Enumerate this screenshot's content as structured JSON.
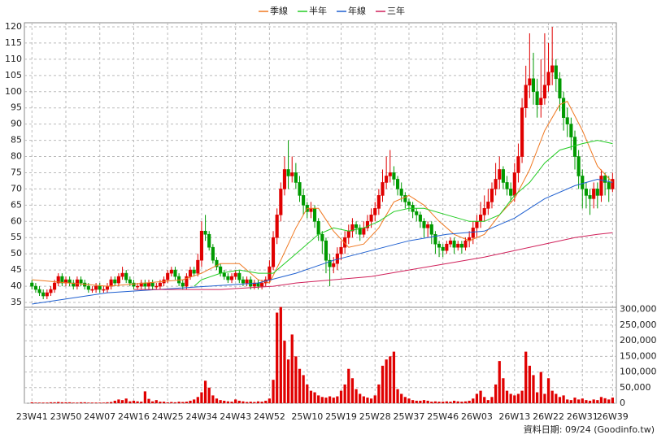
{
  "chart_data": {
    "type": "candlestick",
    "legend_position": "top",
    "grid": true,
    "up_color": "#e00000",
    "down_color": "#009a00",
    "source": "資料日期: 09/24  (Goodinfo.tw)",
    "xlim": [
      -2,
      155
    ],
    "xticks": [
      {
        "value": 0,
        "label": "23W41"
      },
      {
        "value": 9,
        "label": "23W50"
      },
      {
        "value": 18,
        "label": "24W07"
      },
      {
        "value": 27,
        "label": "24W16"
      },
      {
        "value": 36,
        "label": "24W25"
      },
      {
        "value": 45,
        "label": "24W34"
      },
      {
        "value": 54,
        "label": "24W43"
      },
      {
        "value": 63,
        "label": "24W52"
      },
      {
        "value": 73,
        "label": "25W10"
      },
      {
        "value": 82,
        "label": "25W19"
      },
      {
        "value": 91,
        "label": "25W28"
      },
      {
        "value": 100,
        "label": "25W37"
      },
      {
        "value": 109,
        "label": "25W46"
      },
      {
        "value": 118,
        "label": "26W03"
      },
      {
        "value": 128,
        "label": "26W13"
      },
      {
        "value": 137,
        "label": "26W22"
      },
      {
        "value": 146,
        "label": "26W31"
      },
      {
        "value": 154,
        "label": "26W39"
      }
    ],
    "ylim": [
      33.5,
      121.25
    ],
    "yticks": [
      35,
      40,
      45,
      50,
      55,
      60,
      65,
      70,
      75,
      80,
      85,
      90,
      95,
      100,
      105,
      110,
      115,
      120
    ],
    "y2lim": [
      0,
      307000
    ],
    "y2ticks": [
      0,
      {
        "value": 50000,
        "label": "50,000"
      },
      {
        "value": 100000,
        "label": "100,000"
      },
      {
        "value": 150000,
        "label": "150,000"
      },
      {
        "value": 200000,
        "label": "200,000"
      },
      {
        "value": 250000,
        "label": "250,000"
      },
      {
        "value": 300000,
        "label": "300,000"
      }
    ],
    "open": [
      41,
      40,
      39,
      38,
      37,
      38,
      39,
      41,
      43,
      41,
      42,
      41,
      40,
      42,
      41,
      40,
      39,
      39,
      40,
      39,
      39,
      40,
      42,
      41,
      43,
      44,
      42,
      41,
      40,
      40,
      41,
      40,
      41,
      40,
      40,
      41,
      42,
      44,
      45,
      43,
      41,
      40,
      43,
      45,
      44,
      48,
      57,
      56,
      52,
      48,
      46,
      44,
      43,
      42,
      43,
      44,
      42,
      41,
      42,
      40,
      41,
      40,
      41,
      42,
      46,
      55,
      62,
      70,
      76,
      74,
      75,
      72,
      68,
      65,
      63,
      64,
      60,
      56,
      54,
      48,
      46,
      47,
      50,
      52,
      55,
      57,
      59,
      58,
      56,
      58,
      60,
      62,
      64,
      68,
      72,
      74,
      75,
      73,
      70,
      68,
      66,
      65,
      63,
      62,
      60,
      58,
      59,
      56,
      53,
      52,
      51,
      53,
      54,
      52,
      53,
      52,
      54,
      55,
      58,
      60,
      62,
      64,
      66,
      70,
      73,
      76,
      72,
      70,
      68,
      75,
      80,
      95,
      102,
      104,
      100,
      96,
      98,
      102,
      106,
      108,
      104,
      98,
      92,
      90,
      86,
      80,
      74,
      70,
      68,
      67,
      70,
      68,
      74,
      72,
      70
    ],
    "high": [
      42,
      41,
      40,
      39,
      39,
      40,
      42,
      44,
      44,
      43,
      43,
      42,
      43,
      43,
      42,
      41,
      40,
      41,
      41,
      40,
      41,
      43,
      43,
      44,
      46,
      45,
      43,
      42,
      41,
      42,
      42,
      42,
      42,
      41,
      42,
      43,
      45,
      46,
      46,
      44,
      42,
      44,
      46,
      46,
      50,
      60,
      62,
      57,
      53,
      49,
      47,
      45,
      44,
      44,
      45,
      45,
      43,
      43,
      43,
      42,
      42,
      42,
      43,
      48,
      57,
      64,
      72,
      80,
      85,
      80,
      78,
      74,
      70,
      66,
      66,
      65,
      61,
      57,
      55,
      50,
      49,
      52,
      54,
      57,
      59,
      61,
      60,
      59,
      60,
      62,
      64,
      66,
      70,
      76,
      80,
      82,
      77,
      74,
      72,
      69,
      67,
      66,
      64,
      63,
      61,
      60,
      60,
      57,
      54,
      53,
      54,
      55,
      55,
      54,
      54,
      55,
      57,
      60,
      62,
      66,
      68,
      70,
      72,
      78,
      80,
      77,
      74,
      72,
      78,
      84,
      98,
      108,
      118,
      112,
      104,
      110,
      118,
      115,
      120,
      110,
      106,
      100,
      95,
      92,
      88,
      82,
      76,
      72,
      70,
      72,
      72,
      76,
      75,
      74,
      75
    ],
    "low": [
      39,
      38,
      37,
      36,
      36,
      37,
      38,
      40,
      40,
      40,
      40,
      39,
      39,
      40,
      39,
      38,
      38,
      38,
      38,
      38,
      38,
      39,
      40,
      40,
      42,
      41,
      40,
      39,
      39,
      39,
      39,
      39,
      39,
      39,
      39,
      40,
      41,
      43,
      42,
      40,
      39,
      39,
      42,
      43,
      43,
      46,
      54,
      51,
      47,
      45,
      43,
      42,
      41,
      41,
      42,
      41,
      40,
      40,
      39,
      39,
      39,
      39,
      40,
      41,
      45,
      53,
      60,
      68,
      70,
      72,
      70,
      66,
      62,
      61,
      61,
      58,
      54,
      50,
      44,
      40,
      44,
      45,
      48,
      50,
      53,
      55,
      56,
      54,
      55,
      57,
      58,
      60,
      62,
      66,
      70,
      72,
      71,
      68,
      66,
      64,
      63,
      61,
      60,
      58,
      55,
      55,
      53,
      50,
      49,
      49,
      50,
      52,
      50,
      51,
      50,
      51,
      52,
      53,
      55,
      58,
      60,
      62,
      64,
      68,
      70,
      70,
      68,
      66,
      66,
      72,
      78,
      92,
      98,
      96,
      92,
      92,
      96,
      100,
      102,
      100,
      94,
      88,
      86,
      82,
      76,
      70,
      64,
      64,
      62,
      64,
      64,
      66,
      68,
      66,
      69
    ],
    "close": [
      40,
      39,
      38,
      37,
      38,
      39,
      41,
      43,
      41,
      42,
      41,
      40,
      42,
      41,
      40,
      39,
      39,
      40,
      39,
      39,
      40,
      42,
      41,
      43,
      44,
      42,
      41,
      40,
      40,
      41,
      40,
      41,
      40,
      40,
      41,
      42,
      44,
      45,
      43,
      41,
      40,
      43,
      45,
      44,
      48,
      57,
      56,
      52,
      48,
      46,
      44,
      43,
      42,
      43,
      44,
      42,
      41,
      42,
      40,
      41,
      40,
      41,
      42,
      46,
      55,
      62,
      70,
      76,
      74,
      75,
      72,
      68,
      65,
      63,
      64,
      60,
      56,
      54,
      48,
      46,
      47,
      50,
      52,
      55,
      57,
      59,
      58,
      56,
      58,
      60,
      62,
      64,
      68,
      72,
      74,
      75,
      73,
      70,
      68,
      66,
      65,
      63,
      62,
      60,
      58,
      59,
      56,
      53,
      52,
      51,
      53,
      54,
      52,
      53,
      52,
      54,
      55,
      58,
      60,
      62,
      64,
      66,
      70,
      73,
      76,
      72,
      70,
      68,
      75,
      80,
      95,
      102,
      104,
      100,
      96,
      98,
      102,
      106,
      108,
      104,
      98,
      92,
      90,
      86,
      80,
      74,
      70,
      68,
      67,
      70,
      68,
      74,
      72,
      70,
      73
    ],
    "volume": {
      "color": "#e00000",
      "values": [
        3000,
        2000,
        2000,
        2000,
        2000,
        3000,
        3000,
        4000,
        3000,
        3000,
        3000,
        2000,
        2000,
        3000,
        3000,
        2000,
        2000,
        2000,
        2000,
        2000,
        3000,
        4000,
        8000,
        12000,
        10000,
        15000,
        6000,
        8000,
        6000,
        5000,
        38000,
        14000,
        6000,
        10000,
        5000,
        5000,
        3000,
        4000,
        3000,
        5000,
        4000,
        5000,
        8000,
        12000,
        20000,
        35000,
        72000,
        50000,
        25000,
        15000,
        10000,
        8000,
        6000,
        5000,
        12000,
        8000,
        6000,
        4000,
        5000,
        4000,
        6000,
        5000,
        8000,
        15000,
        75000,
        290000,
        308000,
        200000,
        140000,
        220000,
        150000,
        110000,
        90000,
        60000,
        40000,
        35000,
        25000,
        20000,
        18000,
        22000,
        18000,
        22000,
        40000,
        60000,
        110000,
        80000,
        45000,
        30000,
        22000,
        18000,
        15000,
        25000,
        60000,
        120000,
        140000,
        150000,
        165000,
        45000,
        30000,
        20000,
        15000,
        10000,
        8000,
        8000,
        10000,
        8000,
        5000,
        6000,
        5000,
        5000,
        6000,
        5000,
        8000,
        6000,
        5000,
        6000,
        8000,
        15000,
        30000,
        40000,
        20000,
        10000,
        20000,
        60000,
        135000,
        80000,
        40000,
        30000,
        25000,
        30000,
        40000,
        165000,
        120000,
        90000,
        35000,
        100000,
        30000,
        80000,
        40000,
        30000,
        20000,
        25000,
        12000,
        10000,
        18000,
        12000,
        15000,
        10000,
        8000,
        12000,
        10000,
        20000,
        16000,
        12000,
        18000
      ]
    },
    "series": [
      {
        "name": "季線",
        "color": "#f07820",
        "x": [
          0,
          10,
          20,
          30,
          40,
          45,
          50,
          55,
          60,
          63,
          66,
          70,
          73,
          76,
          80,
          84,
          88,
          92,
          96,
          100,
          104,
          108,
          112,
          116,
          120,
          124,
          128,
          132,
          136,
          140,
          142,
          146,
          150,
          154
        ],
        "values": [
          42,
          41,
          40,
          41,
          42,
          44,
          47,
          47,
          42,
          41,
          48,
          58,
          64,
          64,
          57,
          52,
          53,
          58,
          66,
          68,
          65,
          60,
          56,
          54,
          56,
          62,
          67,
          76,
          88,
          96,
          97,
          88,
          77,
          72
        ]
      },
      {
        "name": "半年",
        "color": "#22cc22",
        "x": [
          43,
          45,
          50,
          55,
          60,
          64,
          70,
          76,
          80,
          84,
          88,
          92,
          96,
          100,
          104,
          110,
          116,
          120,
          124,
          128,
          132,
          136,
          140,
          146,
          150,
          154
        ],
        "values": [
          40,
          42,
          44,
          45,
          44,
          44,
          50,
          56,
          58,
          57,
          58,
          60,
          63,
          64,
          64,
          62,
          60,
          60,
          62,
          68,
          72,
          78,
          82,
          84,
          85,
          84
        ]
      },
      {
        "name": "年線",
        "color": "#1e5fd0",
        "x": [
          0,
          20,
          40,
          60,
          70,
          80,
          90,
          100,
          110,
          120,
          128,
          136,
          144,
          150,
          154
        ],
        "values": [
          34.5,
          38,
          39.5,
          41,
          44,
          48,
          51,
          54,
          56,
          57,
          61,
          67,
          71,
          73,
          72
        ]
      },
      {
        "name": "三年",
        "color": "#d0205a",
        "x": [
          27,
          50,
          64,
          70,
          80,
          90,
          100,
          110,
          120,
          128,
          136,
          144,
          150,
          154
        ],
        "values": [
          39,
          39,
          40,
          41,
          42,
          43,
          45,
          47,
          49,
          51,
          53,
          55,
          56,
          56.5
        ]
      }
    ]
  }
}
